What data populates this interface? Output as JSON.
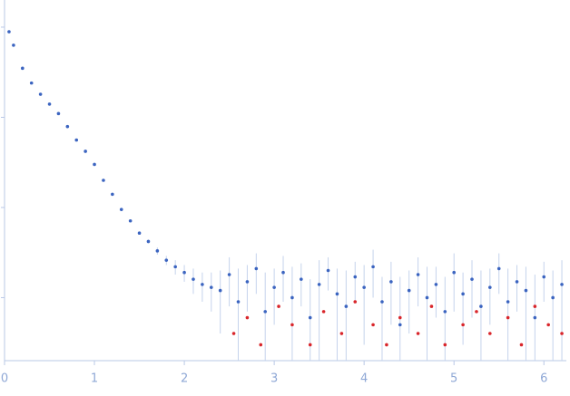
{
  "chart_data": {
    "type": "scatter",
    "log_y": true,
    "xlim": [
      0,
      6.25
    ],
    "xticks": [
      0,
      1,
      2,
      3,
      4,
      5,
      6
    ],
    "ylim": [
      0.0002,
      2
    ],
    "yticks": [
      0.001,
      0.01,
      0.1,
      1
    ],
    "error_color": "#c5d3ec",
    "series": [
      {
        "color": "#3b64c0",
        "x": [
          0.05,
          0.1,
          0.2,
          0.3,
          0.4,
          0.5,
          0.6,
          0.7,
          0.8,
          0.9,
          1.0,
          1.1,
          1.2,
          1.3,
          1.4,
          1.5,
          1.6,
          1.7,
          1.8,
          1.9,
          2.0,
          2.1,
          2.2,
          2.3,
          2.4,
          2.5,
          2.6,
          2.7,
          2.8,
          2.9,
          3.0,
          3.1,
          3.2,
          3.3,
          3.4,
          3.5,
          3.6,
          3.7,
          3.8,
          3.9,
          4.0,
          4.1,
          4.2,
          4.3,
          4.4,
          4.5,
          4.6,
          4.7,
          4.8,
          4.9,
          5.0,
          5.1,
          5.2,
          5.3,
          5.4,
          5.5,
          5.6,
          5.7,
          5.8,
          5.9,
          6.0,
          6.1,
          6.2
        ],
        "values": [
          0.89,
          0.63,
          0.35,
          0.24,
          0.18,
          0.14,
          0.11,
          0.079,
          0.056,
          0.042,
          0.03,
          0.02,
          0.014,
          0.0095,
          0.0071,
          0.0052,
          0.0042,
          0.0033,
          0.0026,
          0.0022,
          0.0019,
          0.0016,
          0.0014,
          0.0013,
          0.0012,
          0.0018,
          0.0009,
          0.0015,
          0.0021,
          0.0007,
          0.0013,
          0.0019,
          0.001,
          0.0016,
          0.0006,
          0.0014,
          0.002,
          0.0011,
          0.0008,
          0.0017,
          0.0013,
          0.0022,
          0.0009,
          0.0015,
          0.0005,
          0.0012,
          0.0018,
          0.001,
          0.0014,
          0.0007,
          0.0019,
          0.0011,
          0.0016,
          0.0008,
          0.0013,
          0.0021,
          0.0009,
          0.0015,
          0.0012,
          0.0006,
          0.0017,
          0.001,
          0.0014
        ],
        "errors": [
          0.01,
          0.005,
          0.002,
          0.0015,
          0.001,
          0.0008,
          0.0006,
          0.0005,
          0.0004,
          0.0003,
          0.0003,
          0.0002,
          0.0002,
          0.0002,
          0.0002,
          0.0002,
          0.0002,
          0.0003,
          0.0003,
          0.0004,
          0.0004,
          0.0005,
          0.0005,
          0.0006,
          0.0008,
          0.001,
          0.0012,
          0.0008,
          0.001,
          0.0012,
          0.0008,
          0.001,
          0.0012,
          0.0008,
          0.001,
          0.0012,
          0.0008,
          0.001,
          0.0012,
          0.0008,
          0.001,
          0.0012,
          0.0008,
          0.001,
          0.0012,
          0.0008,
          0.001,
          0.0012,
          0.0008,
          0.001,
          0.0012,
          0.0008,
          0.001,
          0.0012,
          0.0008,
          0.001,
          0.0012,
          0.0008,
          0.001,
          0.0012,
          0.0008,
          0.001,
          0.0012
        ]
      },
      {
        "color": "#d9262b",
        "x": [
          2.55,
          2.7,
          2.85,
          3.05,
          3.2,
          3.4,
          3.55,
          3.75,
          3.9,
          4.1,
          4.25,
          4.4,
          4.6,
          4.75,
          4.9,
          5.1,
          5.25,
          5.4,
          5.6,
          5.75,
          5.9,
          6.05,
          6.2
        ],
        "values": [
          0.0004,
          0.0006,
          0.0003,
          0.0008,
          0.0005,
          0.0003,
          0.0007,
          0.0004,
          0.0009,
          0.0005,
          0.0003,
          0.0006,
          0.0004,
          0.0008,
          0.0003,
          0.0005,
          0.0007,
          0.0004,
          0.0006,
          0.0003,
          0.0008,
          0.0005,
          0.0004
        ]
      }
    ]
  }
}
